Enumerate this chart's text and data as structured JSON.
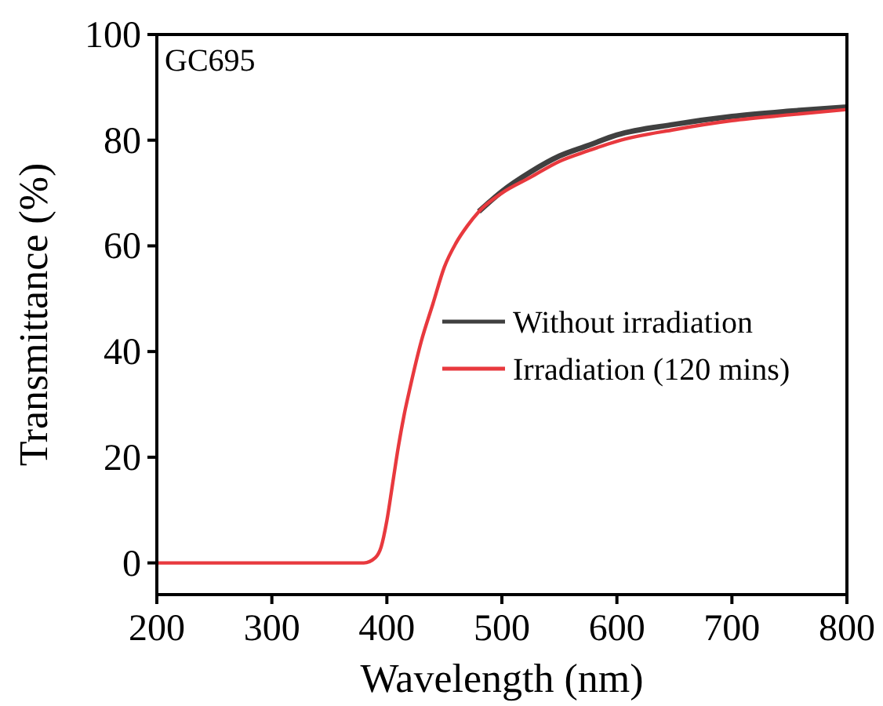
{
  "chart_data": {
    "type": "line",
    "xlabel": "Wavelength (nm)",
    "ylabel": "Transmittance (%)",
    "annotations": [
      "GC695"
    ],
    "x": [
      200,
      300,
      380,
      390,
      395,
      400,
      405,
      410,
      415,
      420,
      430,
      440,
      450,
      460,
      470,
      480,
      500,
      525,
      550,
      575,
      600,
      650,
      700,
      750,
      800
    ],
    "xlim": [
      200,
      800
    ],
    "xticks": [
      200,
      300,
      400,
      500,
      600,
      700,
      800
    ],
    "ylim": [
      -6,
      100
    ],
    "yticks": [
      0,
      20,
      40,
      60,
      80,
      100
    ],
    "grid": false,
    "legend": "right",
    "marker": "none",
    "line_style": "solid",
    "series": [
      {
        "name": "Without irradiation",
        "color": "#404040",
        "x": [
          480,
          500,
          525,
          550,
          575,
          600,
          650,
          700,
          750,
          800
        ],
        "values": [
          66.5,
          70.3,
          74,
          77,
          79,
          81,
          83,
          84.5,
          85.5,
          86.3
        ]
      },
      {
        "name": "Irradiation (120 mins)",
        "color": "#e8393e",
        "values": [
          0,
          0,
          0,
          1,
          3,
          8,
          15,
          22,
          28,
          33,
          42,
          49,
          56,
          60.5,
          63.8,
          66.5,
          70,
          73,
          76,
          78,
          79.8,
          82,
          83.7,
          84.8,
          85.8
        ]
      }
    ]
  }
}
